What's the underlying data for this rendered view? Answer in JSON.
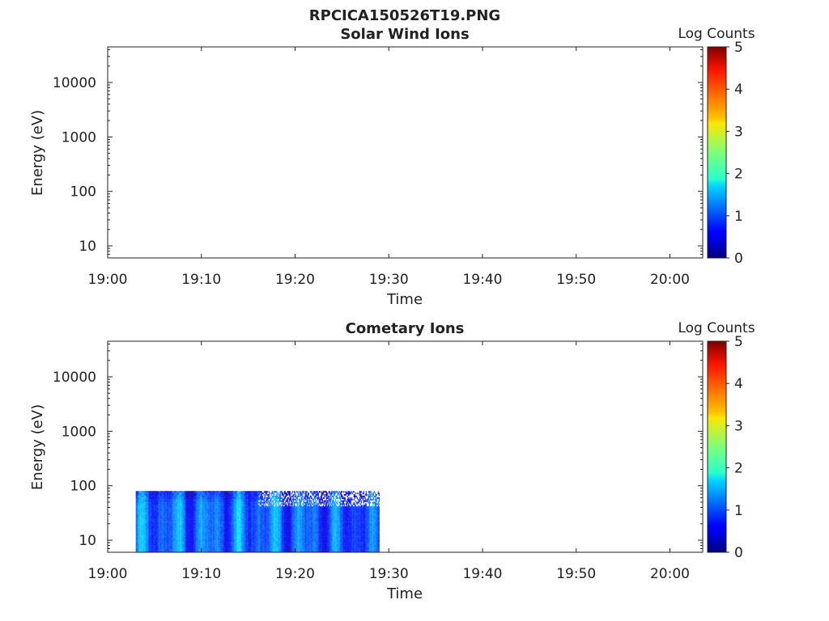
{
  "figure_title": "RPCICA150526T19.PNG",
  "colorbar": {
    "label": "Log Counts",
    "ticks": [
      "0",
      "1",
      "2",
      "3",
      "4",
      "5"
    ],
    "range": [
      0,
      5
    ],
    "colormap": "jet"
  },
  "chart_data": [
    {
      "type": "heatmap",
      "title": "Solar Wind Ions",
      "xlabel": "Time",
      "ylabel": "Energy (eV)",
      "x_ticks": [
        "19:00",
        "19:10",
        "19:20",
        "19:30",
        "19:40",
        "19:50",
        "20:00"
      ],
      "x_range_minutes": [
        0,
        63.5
      ],
      "y_scale": "log",
      "y_ticks": [
        "10",
        "100",
        "1000",
        "10000"
      ],
      "y_range": [
        6,
        45000
      ],
      "z_label": "Log Counts",
      "z_range": [
        0,
        5
      ],
      "data_extent": null,
      "note_data": "no counts shown"
    },
    {
      "type": "heatmap",
      "title": "Cometary Ions",
      "xlabel": "Time",
      "ylabel": "Energy (eV)",
      "x_ticks": [
        "19:00",
        "19:10",
        "19:20",
        "19:30",
        "19:40",
        "19:50",
        "20:00"
      ],
      "x_range_minutes": [
        0,
        63.5
      ],
      "y_scale": "log",
      "y_ticks": [
        "10",
        "100",
        "1000",
        "10000"
      ],
      "y_range": [
        6,
        45000
      ],
      "z_label": "Log Counts",
      "z_range": [
        0,
        5
      ],
      "data_extent": {
        "time_start": "19:03",
        "time_end": "19:29",
        "energy_min": 6,
        "energy_max": 80
      },
      "typical_log_counts": [
        0.5,
        1.8
      ]
    }
  ]
}
